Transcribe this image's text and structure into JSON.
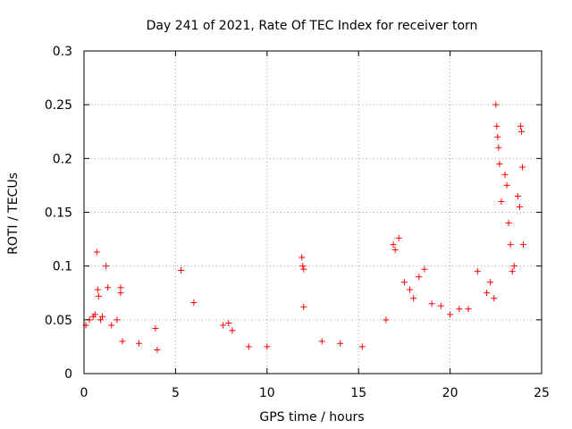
{
  "chart_data": {
    "type": "scatter",
    "title": "Day 241 of 2021, Rate Of TEC Index for receiver torn",
    "xlabel": "GPS time / hours",
    "ylabel": "ROTI / TECUs",
    "xlim": [
      0,
      25
    ],
    "ylim": [
      0,
      0.3
    ],
    "x_ticks": [
      "0",
      "5",
      "10",
      "15",
      "20",
      "25"
    ],
    "y_ticks": [
      "0",
      "0.05",
      "0.1",
      "0.15",
      "0.2",
      "0.25",
      "0.3"
    ],
    "grid": true,
    "legend": "none",
    "marker": "plus",
    "color": "#ff0000",
    "series": [
      {
        "x": [
          0.1,
          0.3,
          0.5,
          0.6,
          0.7,
          0.75,
          0.8,
          0.9,
          1.0,
          1.2,
          1.3,
          1.5,
          1.8,
          2.0,
          2.0,
          2.1,
          3.0,
          3.9,
          4.0,
          5.3,
          6.0,
          7.6,
          7.9,
          8.1,
          9.0,
          10.0,
          11.9,
          11.95,
          12.0,
          12.0,
          13.0,
          14.0,
          15.2,
          16.5,
          16.9,
          17.0,
          17.2,
          17.5,
          17.8,
          18.0,
          18.3,
          18.6,
          19.0,
          19.5,
          20.0,
          20.5,
          21.0,
          21.5,
          22.0,
          22.2,
          22.4,
          22.5,
          22.55,
          22.6,
          22.65,
          22.7,
          22.8,
          23.0,
          23.1,
          23.2,
          23.3,
          23.4,
          23.5,
          23.7,
          23.8,
          23.85,
          23.9,
          23.95,
          24.0
        ],
        "y": [
          0.045,
          0.05,
          0.053,
          0.055,
          0.113,
          0.078,
          0.072,
          0.05,
          0.053,
          0.1,
          0.08,
          0.045,
          0.05,
          0.08,
          0.075,
          0.03,
          0.028,
          0.042,
          0.022,
          0.096,
          0.066,
          0.045,
          0.047,
          0.04,
          0.025,
          0.025,
          0.108,
          0.1,
          0.097,
          0.062,
          0.03,
          0.028,
          0.025,
          0.05,
          0.12,
          0.115,
          0.126,
          0.085,
          0.078,
          0.07,
          0.09,
          0.097,
          0.065,
          0.063,
          0.055,
          0.06,
          0.06,
          0.095,
          0.075,
          0.085,
          0.07,
          0.25,
          0.23,
          0.22,
          0.21,
          0.195,
          0.16,
          0.185,
          0.175,
          0.14,
          0.12,
          0.095,
          0.1,
          0.165,
          0.155,
          0.23,
          0.225,
          0.192,
          0.12
        ]
      }
    ]
  }
}
